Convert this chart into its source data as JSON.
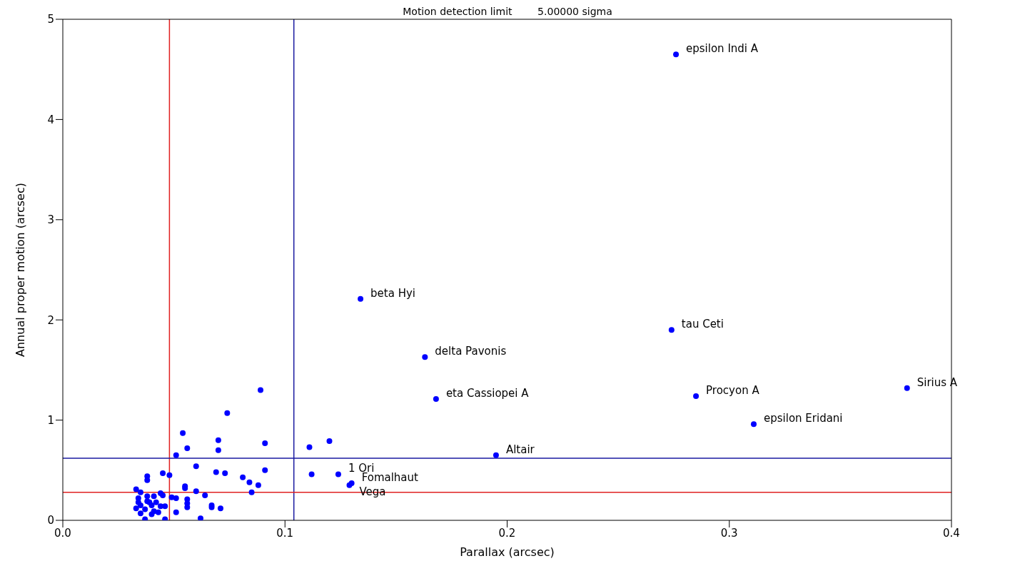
{
  "chart_data": {
    "type": "scatter",
    "title": "Motion detection limit        5.00000 sigma",
    "xlabel": "Parallax (arcsec)",
    "ylabel": "Annual proper motion (arcsec)",
    "xlim": [
      0,
      0.4
    ],
    "xticks": [
      {
        "value": 0,
        "label": "0.0"
      },
      0.1,
      0.2,
      0.3,
      0.4
    ],
    "ylim": [
      0,
      5
    ],
    "yticks": [
      0,
      1,
      2,
      3,
      4,
      5
    ],
    "grid": false,
    "legend": false,
    "marker": "circle",
    "series": [
      {
        "color": "#0000ff",
        "x": [
          0.276,
          0.134,
          0.163,
          0.168,
          0.274,
          0.285,
          0.38,
          0.311,
          0.195,
          0.124,
          0.13,
          0.129,
          0.089,
          0.074,
          0.054,
          0.07,
          0.091,
          0.111,
          0.12,
          0.056,
          0.07,
          0.051,
          0.06,
          0.045,
          0.048,
          0.038,
          0.038,
          0.069,
          0.073,
          0.091,
          0.081,
          0.084,
          0.088,
          0.112,
          0.055,
          0.055,
          0.06,
          0.085,
          0.064,
          0.033,
          0.035,
          0.044,
          0.045,
          0.049,
          0.051,
          0.041,
          0.034,
          0.038,
          0.056,
          0.056,
          0.056,
          0.067,
          0.067,
          0.071,
          0.051,
          0.034,
          0.035,
          0.033,
          0.038,
          0.042,
          0.04,
          0.044,
          0.046,
          0.037,
          0.041,
          0.043,
          0.035,
          0.04,
          0.037,
          0.046,
          0.062,
          0.039
        ],
        "values": [
          4.65,
          2.21,
          1.63,
          1.21,
          1.9,
          1.24,
          1.32,
          0.96,
          0.65,
          0.46,
          0.37,
          0.35,
          1.3,
          1.07,
          0.87,
          0.8,
          0.77,
          0.73,
          0.79,
          0.72,
          0.7,
          0.65,
          0.54,
          0.47,
          0.45,
          0.44,
          0.4,
          0.48,
          0.47,
          0.5,
          0.43,
          0.38,
          0.35,
          0.46,
          0.34,
          0.32,
          0.29,
          0.28,
          0.25,
          0.31,
          0.28,
          0.27,
          0.25,
          0.23,
          0.22,
          0.24,
          0.22,
          0.24,
          0.21,
          0.17,
          0.13,
          0.15,
          0.13,
          0.12,
          0.08,
          0.18,
          0.15,
          0.12,
          0.19,
          0.18,
          0.15,
          0.14,
          0.14,
          0.11,
          0.09,
          0.08,
          0.07,
          0.06,
          0.01,
          0.01,
          0.02,
          0.18
        ]
      }
    ],
    "annotations": [
      {
        "text": "epsilon Indi A",
        "x": 0.276,
        "y": 4.65
      },
      {
        "text": "beta Hyi",
        "x": 0.134,
        "y": 2.21
      },
      {
        "text": "delta Pavonis",
        "x": 0.163,
        "y": 1.63
      },
      {
        "text": "eta Cassiopei A",
        "x": 0.168,
        "y": 1.21
      },
      {
        "text": "tau Ceti",
        "x": 0.274,
        "y": 1.9
      },
      {
        "text": "Procyon A",
        "x": 0.285,
        "y": 1.24
      },
      {
        "text": "Sirius A",
        "x": 0.38,
        "y": 1.32
      },
      {
        "text": "epsilon Eridani",
        "x": 0.311,
        "y": 0.96
      },
      {
        "text": "Altair",
        "x": 0.195,
        "y": 0.65
      },
      {
        "text": "1 Ori",
        "x": 0.124,
        "y": 0.46
      },
      {
        "text": "Fomalhaut",
        "x": 0.13,
        "y": 0.37
      },
      {
        "text": "Vega",
        "x": 0.129,
        "y": 0.35
      }
    ],
    "ref_lines": [
      {
        "axis": "x",
        "value": 0.048,
        "color": "#e02020"
      },
      {
        "axis": "x",
        "value": 0.104,
        "color": "#1a1aa0"
      },
      {
        "axis": "y",
        "value": 0.28,
        "color": "#e02020"
      },
      {
        "axis": "y",
        "value": 0.62,
        "color": "#1a1aa0"
      }
    ]
  }
}
